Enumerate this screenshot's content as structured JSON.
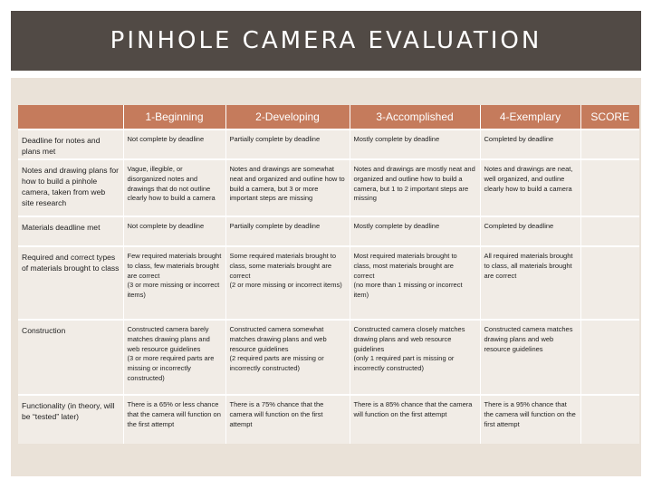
{
  "title": "PINHOLE CAMERA EVALUATION",
  "table": {
    "headers": [
      "",
      "1-Beginning",
      "2-Developing",
      "3-Accomplished",
      "4-Exemplary",
      "SCORE"
    ],
    "rows": [
      {
        "criterion": "Deadline for notes and plans met",
        "cells": [
          "Not complete by deadline",
          "Partially complete by deadline",
          "Mostly complete by deadline",
          "Completed by deadline"
        ]
      },
      {
        "criterion": "Notes and drawing plans for how to build a pinhole camera, taken from web site research",
        "cells": [
          "Vague, illegible, or disorganized notes and drawings that do not outline clearly how to build a camera",
          "Notes and drawings are somewhat neat and organized and outline how to build a camera, but 3 or more important steps are missing",
          "Notes and drawings are mostly neat and organized and outline how to build a camera, but 1 to 2 important steps are missing",
          "Notes and drawings are neat, well organized, and outline clearly how to build a camera"
        ]
      },
      {
        "criterion": "Materials deadline met",
        "cells": [
          "Not complete by deadline",
          "Partially complete by deadline",
          "Mostly complete by deadline",
          "Completed by deadline"
        ]
      },
      {
        "criterion": "Required and correct types of materials brought to class",
        "cells": [
          "Few required materials brought to class, few materials brought are correct\n(3 or more missing or incorrect items)",
          "Some required materials brought to class, some materials brought are correct\n(2 or more missing or incorrect items)",
          "Most required materials brought to class, most materials brought are correct\n(no more than 1 missing or incorrect item)",
          "All required materials brought to class, all materials brought are correct"
        ]
      },
      {
        "criterion": "Construction",
        "cells": [
          "Constructed camera barely matches drawing plans and web resource guidelines\n(3 or more required parts are missing or incorrectly constructed)",
          "Constructed camera somewhat matches drawing plans and web resource guidelines\n(2 required parts are missing or incorrectly constructed)",
          "Constructed camera closely matches drawing plans and web resource guidelines\n(only 1 required part is missing or incorrectly constructed)",
          "Constructed camera matches drawing plans and web resource guidelines"
        ]
      },
      {
        "criterion": "Functionality (in theory, will be “tested” later)",
        "cells": [
          "There is a 65% or less chance that the camera will function on the first attempt",
          "There is a 75% chance that the camera will function on the first attempt",
          "There is a 85% chance that the camera will function on the first attempt",
          "There is a 95% chance that the camera will function on the first attempt"
        ]
      }
    ]
  }
}
